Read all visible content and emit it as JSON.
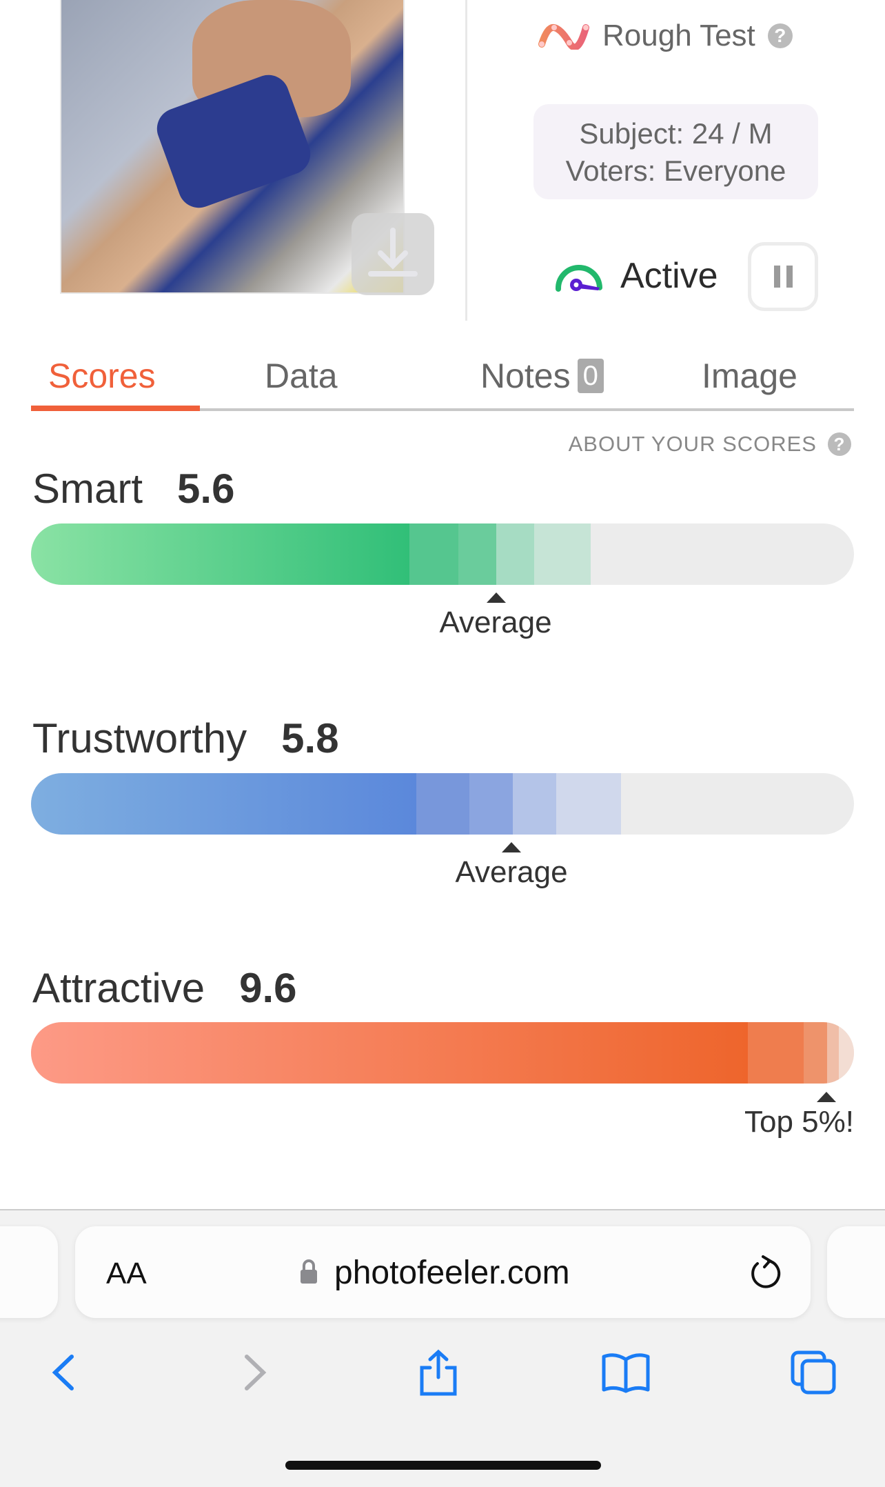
{
  "header": {
    "test_type": "Rough Test",
    "subject": "Subject: 24 / M",
    "voters": "Voters: Everyone",
    "status": "Active"
  },
  "tabs": [
    {
      "label": "Scores",
      "active": true
    },
    {
      "label": "Data"
    },
    {
      "label": "Notes",
      "badge": "0"
    },
    {
      "label": "Image"
    }
  ],
  "about_scores": "ABOUT YOUR SCORES",
  "scores": [
    {
      "name": "Smart",
      "value": "5.6",
      "marker": "Average",
      "color": "#34c17a"
    },
    {
      "name": "Trustworthy",
      "value": "5.8",
      "marker": "Average",
      "color": "#5b88db"
    },
    {
      "name": "Attractive",
      "value": "9.6",
      "marker": "Top 5%!",
      "color": "#ee652c"
    }
  ],
  "browser": {
    "text_size_label": "AA",
    "url": "photofeeler.com"
  },
  "colors": {
    "accent": "#f0603a",
    "active_green": "#22b86c",
    "active_purple": "#5a1ed1"
  }
}
